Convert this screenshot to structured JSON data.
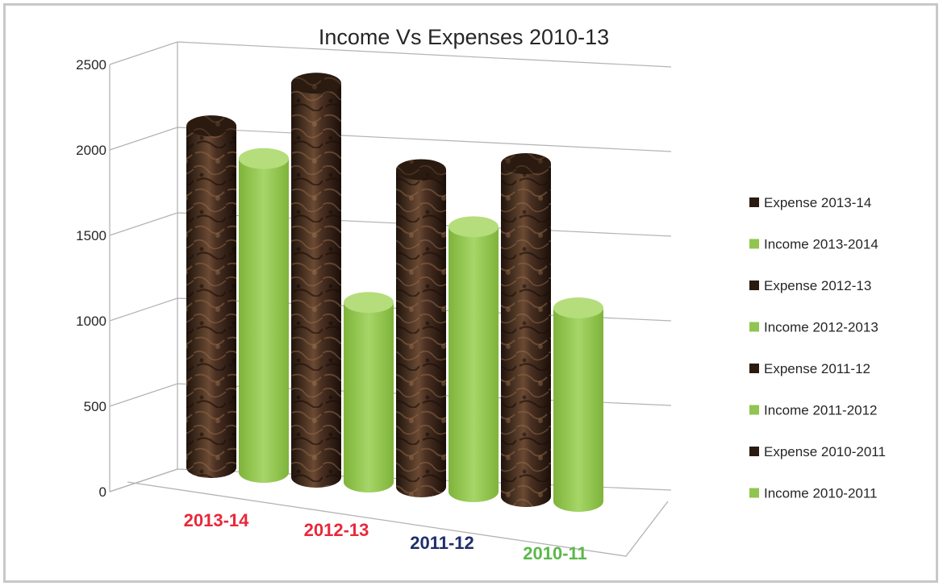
{
  "chart_data": {
    "type": "bar",
    "title": "Income Vs Expenses 2010-13",
    "xlabel": "",
    "ylabel": "",
    "ylim": [
      0,
      2500
    ],
    "yticks": [
      0,
      500,
      1000,
      1500,
      2000,
      2500
    ],
    "grid": true,
    "legend_position": "right",
    "categories": [
      "2013-14",
      "2012-13",
      "2011-12",
      "2010-11"
    ],
    "category_colors": [
      "#e8283a",
      "#e8283a",
      "#1f2f6b",
      "#5bb84a"
    ],
    "series": [
      {
        "name": "Expense 2013-14",
        "category": "2013-14",
        "kind": "expense",
        "value": 1960,
        "color": "#3a2418"
      },
      {
        "name": "Income 2013-2014",
        "category": "2013-14",
        "kind": "income",
        "value": 1800,
        "color": "#92c451"
      },
      {
        "name": "Expense 2012-13",
        "category": "2012-13",
        "kind": "expense",
        "value": 2260,
        "color": "#3a2418"
      },
      {
        "name": "Income 2012-2013",
        "category": "2012-13",
        "kind": "income",
        "value": 1030,
        "color": "#92c451"
      },
      {
        "name": "Expense 2011-12",
        "category": "2011-12",
        "kind": "expense",
        "value": 1820,
        "color": "#3a2418"
      },
      {
        "name": "Income 2011-2012",
        "category": "2011-12",
        "kind": "income",
        "value": 1520,
        "color": "#92c451"
      },
      {
        "name": "Expense 2010-2011",
        "category": "2010-11",
        "kind": "expense",
        "value": 1910,
        "color": "#3a2418"
      },
      {
        "name": "Income 2010-2011",
        "category": "2010-11",
        "kind": "income",
        "value": 1110,
        "color": "#92c451"
      }
    ]
  }
}
